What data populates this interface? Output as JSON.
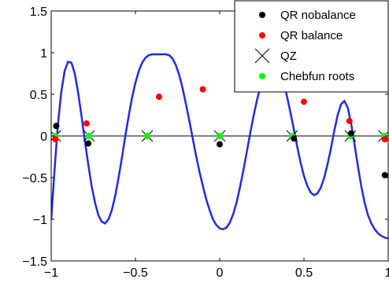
{
  "chart_data": {
    "type": "line",
    "title": "",
    "xlabel": "",
    "ylabel": "",
    "xlim": [
      -1,
      1
    ],
    "ylim": [
      -1.5,
      1.5
    ],
    "x_ticks": [
      -1,
      -0.5,
      0,
      0.5,
      1
    ],
    "x_tick_labels": [
      "−1",
      "−0.5",
      "0",
      "0.5",
      "1"
    ],
    "y_ticks": [
      -1.5,
      -1,
      -0.5,
      0,
      0.5,
      1,
      1.5
    ],
    "y_tick_labels": [
      "−1.5",
      "−1",
      "−0.5",
      "0",
      "0.5",
      "1",
      "1.5"
    ],
    "grid": false,
    "legend_position": "top-right",
    "curve": {
      "color": "#1f2ed6",
      "x": [
        -1,
        -0.98,
        -0.96,
        -0.94,
        -0.92,
        -0.9,
        -0.88,
        -0.86,
        -0.84,
        -0.82,
        -0.8,
        -0.78,
        -0.76,
        -0.74,
        -0.72,
        -0.7,
        -0.68,
        -0.66,
        -0.64,
        -0.62,
        -0.6,
        -0.58,
        -0.56,
        -0.54,
        -0.52,
        -0.5,
        -0.48,
        -0.46,
        -0.44,
        -0.42,
        -0.4,
        -0.38,
        -0.36,
        -0.34,
        -0.32,
        -0.3,
        -0.28,
        -0.26,
        -0.24,
        -0.22,
        -0.2,
        -0.18,
        -0.16,
        -0.14,
        -0.12,
        -0.1,
        -0.08,
        -0.06,
        -0.04,
        -0.02,
        0,
        0.02,
        0.04,
        0.06,
        0.08,
        0.1,
        0.12,
        0.14,
        0.16,
        0.18,
        0.2,
        0.22,
        0.24,
        0.26,
        0.28,
        0.3,
        0.32,
        0.34,
        0.36,
        0.38,
        0.4,
        0.42,
        0.44,
        0.46,
        0.48,
        0.5,
        0.52,
        0.54,
        0.56,
        0.58,
        0.6,
        0.62,
        0.64,
        0.66,
        0.68,
        0.7,
        0.72,
        0.74,
        0.76,
        0.78,
        0.8,
        0.82,
        0.84,
        0.86,
        0.88,
        0.9,
        0.92,
        0.94,
        0.96,
        0.98,
        1
      ],
      "y": [
        -1.0,
        -0.41,
        0.14,
        0.53,
        0.78,
        0.89,
        0.88,
        0.75,
        0.52,
        0.24,
        -0.06,
        -0.34,
        -0.6,
        -0.8,
        -0.95,
        -1.03,
        -1.05,
        -1.0,
        -0.89,
        -0.72,
        -0.5,
        -0.26,
        0.0,
        0.24,
        0.46,
        0.64,
        0.78,
        0.88,
        0.94,
        0.97,
        0.98,
        0.98,
        0.98,
        0.98,
        0.98,
        0.97,
        0.93,
        0.85,
        0.73,
        0.57,
        0.38,
        0.18,
        -0.03,
        -0.24,
        -0.43,
        -0.6,
        -0.76,
        -0.89,
        -1.0,
        -1.07,
        -1.11,
        -1.12,
        -1.1,
        -1.04,
        -0.94,
        -0.8,
        -0.62,
        -0.42,
        -0.2,
        0.02,
        0.23,
        0.42,
        0.58,
        0.71,
        0.8,
        0.86,
        0.88,
        0.85,
        0.77,
        0.64,
        0.47,
        0.28,
        0.08,
        -0.13,
        -0.32,
        -0.48,
        -0.6,
        -0.68,
        -0.71,
        -0.69,
        -0.62,
        -0.5,
        -0.34,
        -0.15,
        0.06,
        0.25,
        0.38,
        0.42,
        0.34,
        0.15,
        -0.1,
        -0.36,
        -0.6,
        -0.8,
        -0.95,
        -1.05,
        -1.12,
        -1.17,
        -1.2,
        -1.22,
        -1.23
      ]
    },
    "zero_line_color": "#000000",
    "series": [
      {
        "name": "QR nobalance",
        "color": "#000000",
        "marker": "dot",
        "x": [
          -0.97,
          -0.78,
          0.0,
          0.44,
          0.78,
          0.98
        ],
        "y": [
          0.12,
          -0.09,
          -0.1,
          -0.03,
          0.03,
          -0.47
        ]
      },
      {
        "name": "QR balance",
        "color": "#ff0000",
        "marker": "dot",
        "x": [
          -0.975,
          -0.79,
          -0.36,
          -0.1,
          0.5,
          0.77,
          0.98
        ],
        "y": [
          -0.04,
          0.15,
          0.47,
          0.56,
          0.41,
          0.18,
          -0.04
        ]
      },
      {
        "name": "QZ",
        "color": "#000000",
        "marker": "x",
        "x": [
          -0.975,
          -0.775,
          -0.43,
          0.0,
          0.43,
          0.775,
          0.975
        ],
        "y": [
          0,
          0,
          0,
          0,
          0,
          0,
          0
        ]
      },
      {
        "name": "Chebfun roots",
        "color": "#00ff00",
        "marker": "dot",
        "x": [
          -0.975,
          -0.775,
          -0.43,
          0.0,
          0.43,
          0.775,
          0.975
        ],
        "y": [
          0,
          0,
          0,
          0,
          0,
          0,
          0
        ]
      }
    ]
  }
}
